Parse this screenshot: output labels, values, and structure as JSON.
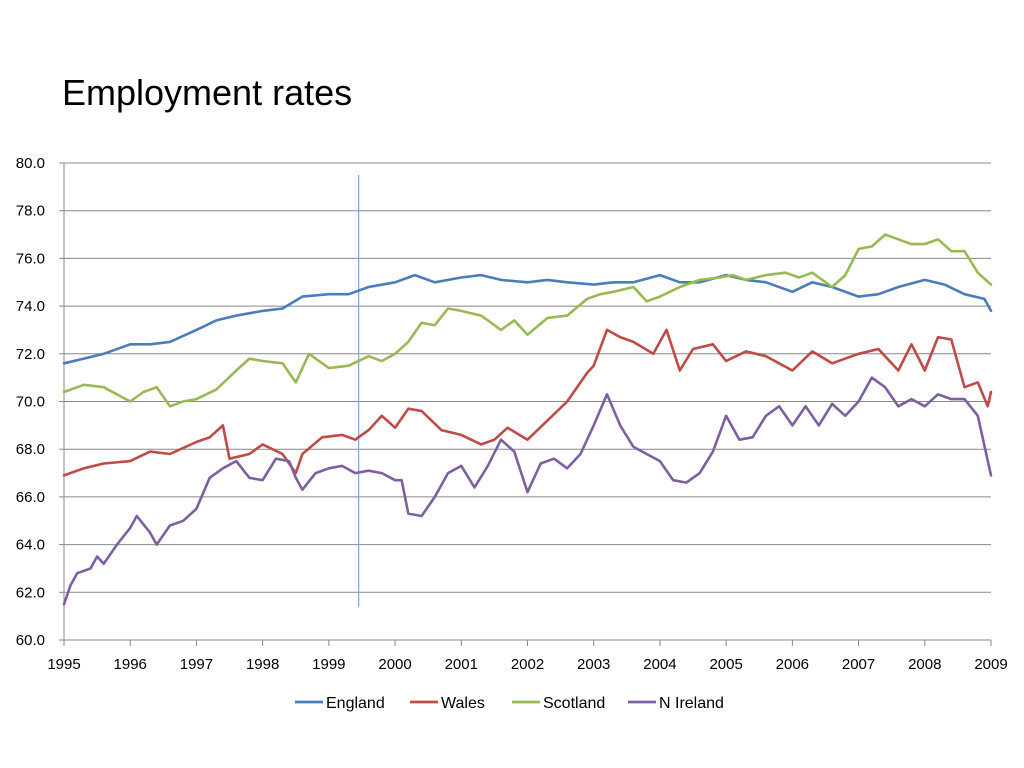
{
  "chart_data": {
    "type": "line",
    "title": "Employment rates",
    "xlabel": "",
    "ylabel": "",
    "ylim": [
      60,
      80
    ],
    "xlim": [
      1995,
      2009
    ],
    "y_ticks": [
      "60.0",
      "62.0",
      "64.0",
      "66.0",
      "68.0",
      "70.0",
      "72.0",
      "74.0",
      "76.0",
      "78.0",
      "80.0"
    ],
    "x_ticks": [
      "1995",
      "1996",
      "1997",
      "1998",
      "1999",
      "2000",
      "2001",
      "2002",
      "2003",
      "2004",
      "2005",
      "2006",
      "2007",
      "2008",
      "2009"
    ],
    "grid": true,
    "legend_position": "bottom",
    "reference_line": {
      "x": 1999.45
    },
    "series": [
      {
        "name": "England",
        "color": "#4a7ebb",
        "x": [
          1995.0,
          1995.3,
          1995.6,
          1996.0,
          1996.3,
          1996.6,
          1997.0,
          1997.3,
          1997.6,
          1998.0,
          1998.3,
          1998.6,
          1999.0,
          1999.3,
          1999.6,
          2000.0,
          2000.3,
          2000.6,
          2001.0,
          2001.3,
          2001.6,
          2002.0,
          2002.3,
          2002.6,
          2003.0,
          2003.3,
          2003.6,
          2004.0,
          2004.3,
          2004.6,
          2005.0,
          2005.3,
          2005.6,
          2006.0,
          2006.3,
          2006.6,
          2007.0,
          2007.3,
          2007.6,
          2008.0,
          2008.3,
          2008.6,
          2008.9,
          2009.0
        ],
        "values": [
          71.6,
          71.8,
          72.0,
          72.4,
          72.4,
          72.5,
          73.0,
          73.4,
          73.6,
          73.8,
          73.9,
          74.4,
          74.5,
          74.5,
          74.8,
          75.0,
          75.3,
          75.0,
          75.2,
          75.3,
          75.1,
          75.0,
          75.1,
          75.0,
          74.9,
          75.0,
          75.0,
          75.3,
          75.0,
          75.0,
          75.3,
          75.1,
          75.0,
          74.6,
          75.0,
          74.8,
          74.4,
          74.5,
          74.8,
          75.1,
          74.9,
          74.5,
          74.3,
          73.8
        ]
      },
      {
        "name": "Wales",
        "color": "#be4b48",
        "x": [
          1995.0,
          1995.3,
          1995.6,
          1996.0,
          1996.3,
          1996.6,
          1997.0,
          1997.2,
          1997.4,
          1997.5,
          1997.8,
          1998.0,
          1998.3,
          1998.5,
          1998.6,
          1998.9,
          1999.2,
          1999.4,
          1999.6,
          1999.8,
          2000.0,
          2000.2,
          2000.4,
          2000.7,
          2001.0,
          2001.3,
          2001.5,
          2001.7,
          2002.0,
          2002.3,
          2002.6,
          2002.9,
          2003.0,
          2003.2,
          2003.4,
          2003.6,
          2003.9,
          2004.1,
          2004.3,
          2004.5,
          2004.8,
          2005.0,
          2005.3,
          2005.6,
          2006.0,
          2006.3,
          2006.6,
          2007.0,
          2007.3,
          2007.6,
          2007.8,
          2008.0,
          2008.2,
          2008.4,
          2008.6,
          2008.8,
          2008.95,
          2009.0
        ],
        "values": [
          66.9,
          67.2,
          67.4,
          67.5,
          67.9,
          67.8,
          68.3,
          68.5,
          69.0,
          67.6,
          67.8,
          68.2,
          67.8,
          67.0,
          67.8,
          68.5,
          68.6,
          68.4,
          68.8,
          69.4,
          68.9,
          69.7,
          69.6,
          68.8,
          68.6,
          68.2,
          68.4,
          68.9,
          68.4,
          69.2,
          70.0,
          71.2,
          71.5,
          73.0,
          72.7,
          72.5,
          72.0,
          73.0,
          71.3,
          72.2,
          72.4,
          71.7,
          72.1,
          71.9,
          71.3,
          72.1,
          71.6,
          72.0,
          72.2,
          71.3,
          72.4,
          71.3,
          72.7,
          72.6,
          70.6,
          70.8,
          69.8,
          70.4
        ]
      },
      {
        "name": "Scotland",
        "color": "#98b954",
        "x": [
          1995.0,
          1995.3,
          1995.6,
          1996.0,
          1996.2,
          1996.4,
          1996.6,
          1996.8,
          1997.0,
          1997.3,
          1997.6,
          1997.8,
          1998.0,
          1998.3,
          1998.5,
          1998.7,
          1999.0,
          1999.3,
          1999.6,
          1999.8,
          2000.0,
          2000.2,
          2000.4,
          2000.6,
          2000.8,
          2001.0,
          2001.3,
          2001.6,
          2001.8,
          2002.0,
          2002.3,
          2002.6,
          2002.9,
          2003.1,
          2003.3,
          2003.6,
          2003.8,
          2004.0,
          2004.3,
          2004.6,
          2004.9,
          2005.1,
          2005.3,
          2005.6,
          2005.9,
          2006.1,
          2006.3,
          2006.6,
          2006.8,
          2007.0,
          2007.2,
          2007.4,
          2007.6,
          2007.8,
          2008.0,
          2008.2,
          2008.4,
          2008.6,
          2008.8,
          2009.0
        ],
        "values": [
          70.4,
          70.7,
          70.6,
          70.0,
          70.4,
          70.6,
          69.8,
          70.0,
          70.1,
          70.5,
          71.3,
          71.8,
          71.7,
          71.6,
          70.8,
          72.0,
          71.4,
          71.5,
          71.9,
          71.7,
          72.0,
          72.5,
          73.3,
          73.2,
          73.9,
          73.8,
          73.6,
          73.0,
          73.4,
          72.8,
          73.5,
          73.6,
          74.3,
          74.5,
          74.6,
          74.8,
          74.2,
          74.4,
          74.8,
          75.1,
          75.2,
          75.3,
          75.1,
          75.3,
          75.4,
          75.2,
          75.4,
          74.8,
          75.3,
          76.4,
          76.5,
          77.0,
          76.8,
          76.6,
          76.6,
          76.8,
          76.3,
          76.3,
          75.4,
          74.9
        ]
      },
      {
        "name": "N Ireland",
        "color": "#7d60a0",
        "x": [
          1995.0,
          1995.1,
          1995.2,
          1995.4,
          1995.5,
          1995.6,
          1995.8,
          1996.0,
          1996.1,
          1996.3,
          1996.4,
          1996.6,
          1996.8,
          1997.0,
          1997.2,
          1997.4,
          1997.6,
          1997.8,
          1998.0,
          1998.2,
          1998.4,
          1998.5,
          1998.6,
          1998.8,
          1999.0,
          1999.2,
          1999.4,
          1999.6,
          1999.8,
          2000.0,
          2000.1,
          2000.2,
          2000.4,
          2000.6,
          2000.8,
          2001.0,
          2001.2,
          2001.4,
          2001.6,
          2001.8,
          2002.0,
          2002.2,
          2002.4,
          2002.6,
          2002.8,
          2003.0,
          2003.2,
          2003.4,
          2003.6,
          2003.8,
          2004.0,
          2004.2,
          2004.4,
          2004.6,
          2004.8,
          2005.0,
          2005.2,
          2005.4,
          2005.6,
          2005.8,
          2006.0,
          2006.2,
          2006.4,
          2006.6,
          2006.8,
          2007.0,
          2007.2,
          2007.4,
          2007.6,
          2007.8,
          2008.0,
          2008.2,
          2008.4,
          2008.6,
          2008.8,
          2009.0
        ],
        "values": [
          61.5,
          62.3,
          62.8,
          63.0,
          63.5,
          63.2,
          64.0,
          64.7,
          65.2,
          64.5,
          64.0,
          64.8,
          65.0,
          65.5,
          66.8,
          67.2,
          67.5,
          66.8,
          66.7,
          67.6,
          67.5,
          66.8,
          66.3,
          67.0,
          67.2,
          67.3,
          67.0,
          67.1,
          67.0,
          66.7,
          66.7,
          65.3,
          65.2,
          66.0,
          67.0,
          67.3,
          66.4,
          67.3,
          68.4,
          67.9,
          66.2,
          67.4,
          67.6,
          67.2,
          67.8,
          69.0,
          70.3,
          69.0,
          68.1,
          67.8,
          67.5,
          66.7,
          66.6,
          67.0,
          67.9,
          69.4,
          68.4,
          68.5,
          69.4,
          69.8,
          69.0,
          69.8,
          69.0,
          69.9,
          69.4,
          70.0,
          71.0,
          70.6,
          69.8,
          70.1,
          69.8,
          70.3,
          70.1,
          70.1,
          69.4,
          66.9
        ]
      }
    ]
  }
}
